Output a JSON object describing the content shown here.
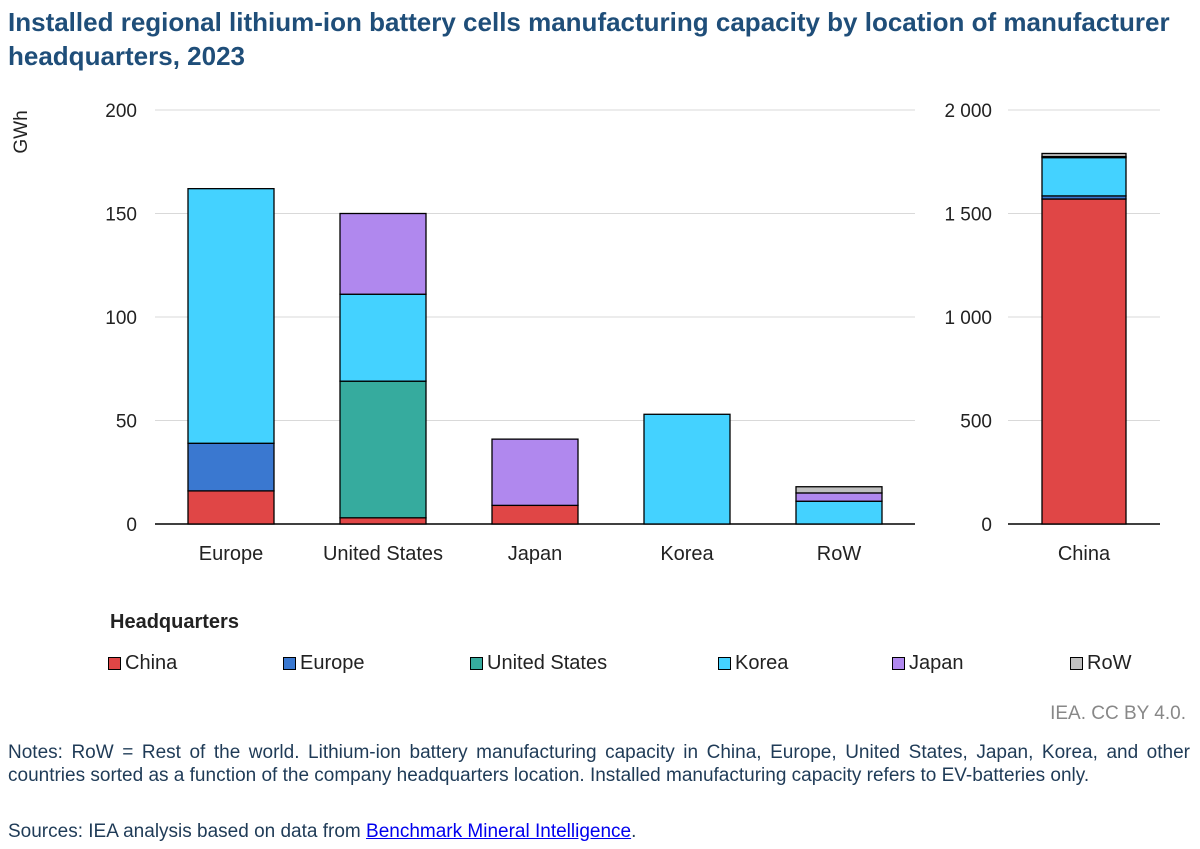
{
  "title": "Installed regional lithium-ion battery cells manufacturing capacity by location of manufacturer headquarters, 2023",
  "chart_data": [
    {
      "type": "bar",
      "stacked": true,
      "ylabel": "GWh",
      "ylim": [
        0,
        200
      ],
      "yticks": [
        "200",
        "150",
        "100",
        "50",
        "0"
      ],
      "categories": [
        "Europe",
        "United States",
        "Japan",
        "Korea",
        "RoW"
      ],
      "grid": true,
      "series": [
        {
          "name": "China",
          "values": [
            16,
            3,
            9,
            0,
            0
          ]
        },
        {
          "name": "Europe",
          "values": [
            23,
            0,
            0,
            0,
            0
          ]
        },
        {
          "name": "United States",
          "values": [
            0,
            66,
            0,
            0,
            0
          ]
        },
        {
          "name": "Korea",
          "values": [
            123,
            42,
            0,
            53,
            11
          ]
        },
        {
          "name": "Japan",
          "values": [
            0,
            39,
            32,
            0,
            4
          ]
        },
        {
          "name": "RoW",
          "values": [
            0,
            0,
            0,
            0,
            3
          ]
        }
      ]
    },
    {
      "type": "bar",
      "stacked": true,
      "ylim": [
        0,
        2000
      ],
      "yticks": [
        "2 000",
        "1 500",
        "1 000",
        "500",
        "0"
      ],
      "categories": [
        "China"
      ],
      "grid": true,
      "series": [
        {
          "name": "China",
          "values": [
            1570
          ]
        },
        {
          "name": "Europe",
          "values": [
            15
          ]
        },
        {
          "name": "United States",
          "values": [
            0
          ]
        },
        {
          "name": "Korea",
          "values": [
            185
          ]
        },
        {
          "name": "Japan",
          "values": [
            5
          ]
        },
        {
          "name": "RoW",
          "values": [
            15
          ]
        }
      ]
    }
  ],
  "legend": {
    "title": "Headquarters",
    "placement": "bottom",
    "items": [
      {
        "label": "China",
        "color": "#e04646"
      },
      {
        "label": "Europe",
        "color": "#3a78d0"
      },
      {
        "label": "United States",
        "color": "#36ab9e"
      },
      {
        "label": "Korea",
        "color": "#44d2ff"
      },
      {
        "label": "Japan",
        "color": "#b088ee"
      },
      {
        "label": "RoW",
        "color": "#c0c0c0"
      }
    ]
  },
  "credit": "IEA. CC BY 4.0.",
  "notes": "Notes: RoW = Rest of the world. Lithium-ion battery manufacturing capacity in China, Europe, United States, Japan, Korea, and other countries sorted as a function of the company headquarters location. Installed manufacturing capacity refers to EV-batteries only.",
  "sources": {
    "prefix": "Sources: IEA analysis based on data from ",
    "link_text": "Benchmark Mineral Intelligence",
    "suffix": "."
  }
}
